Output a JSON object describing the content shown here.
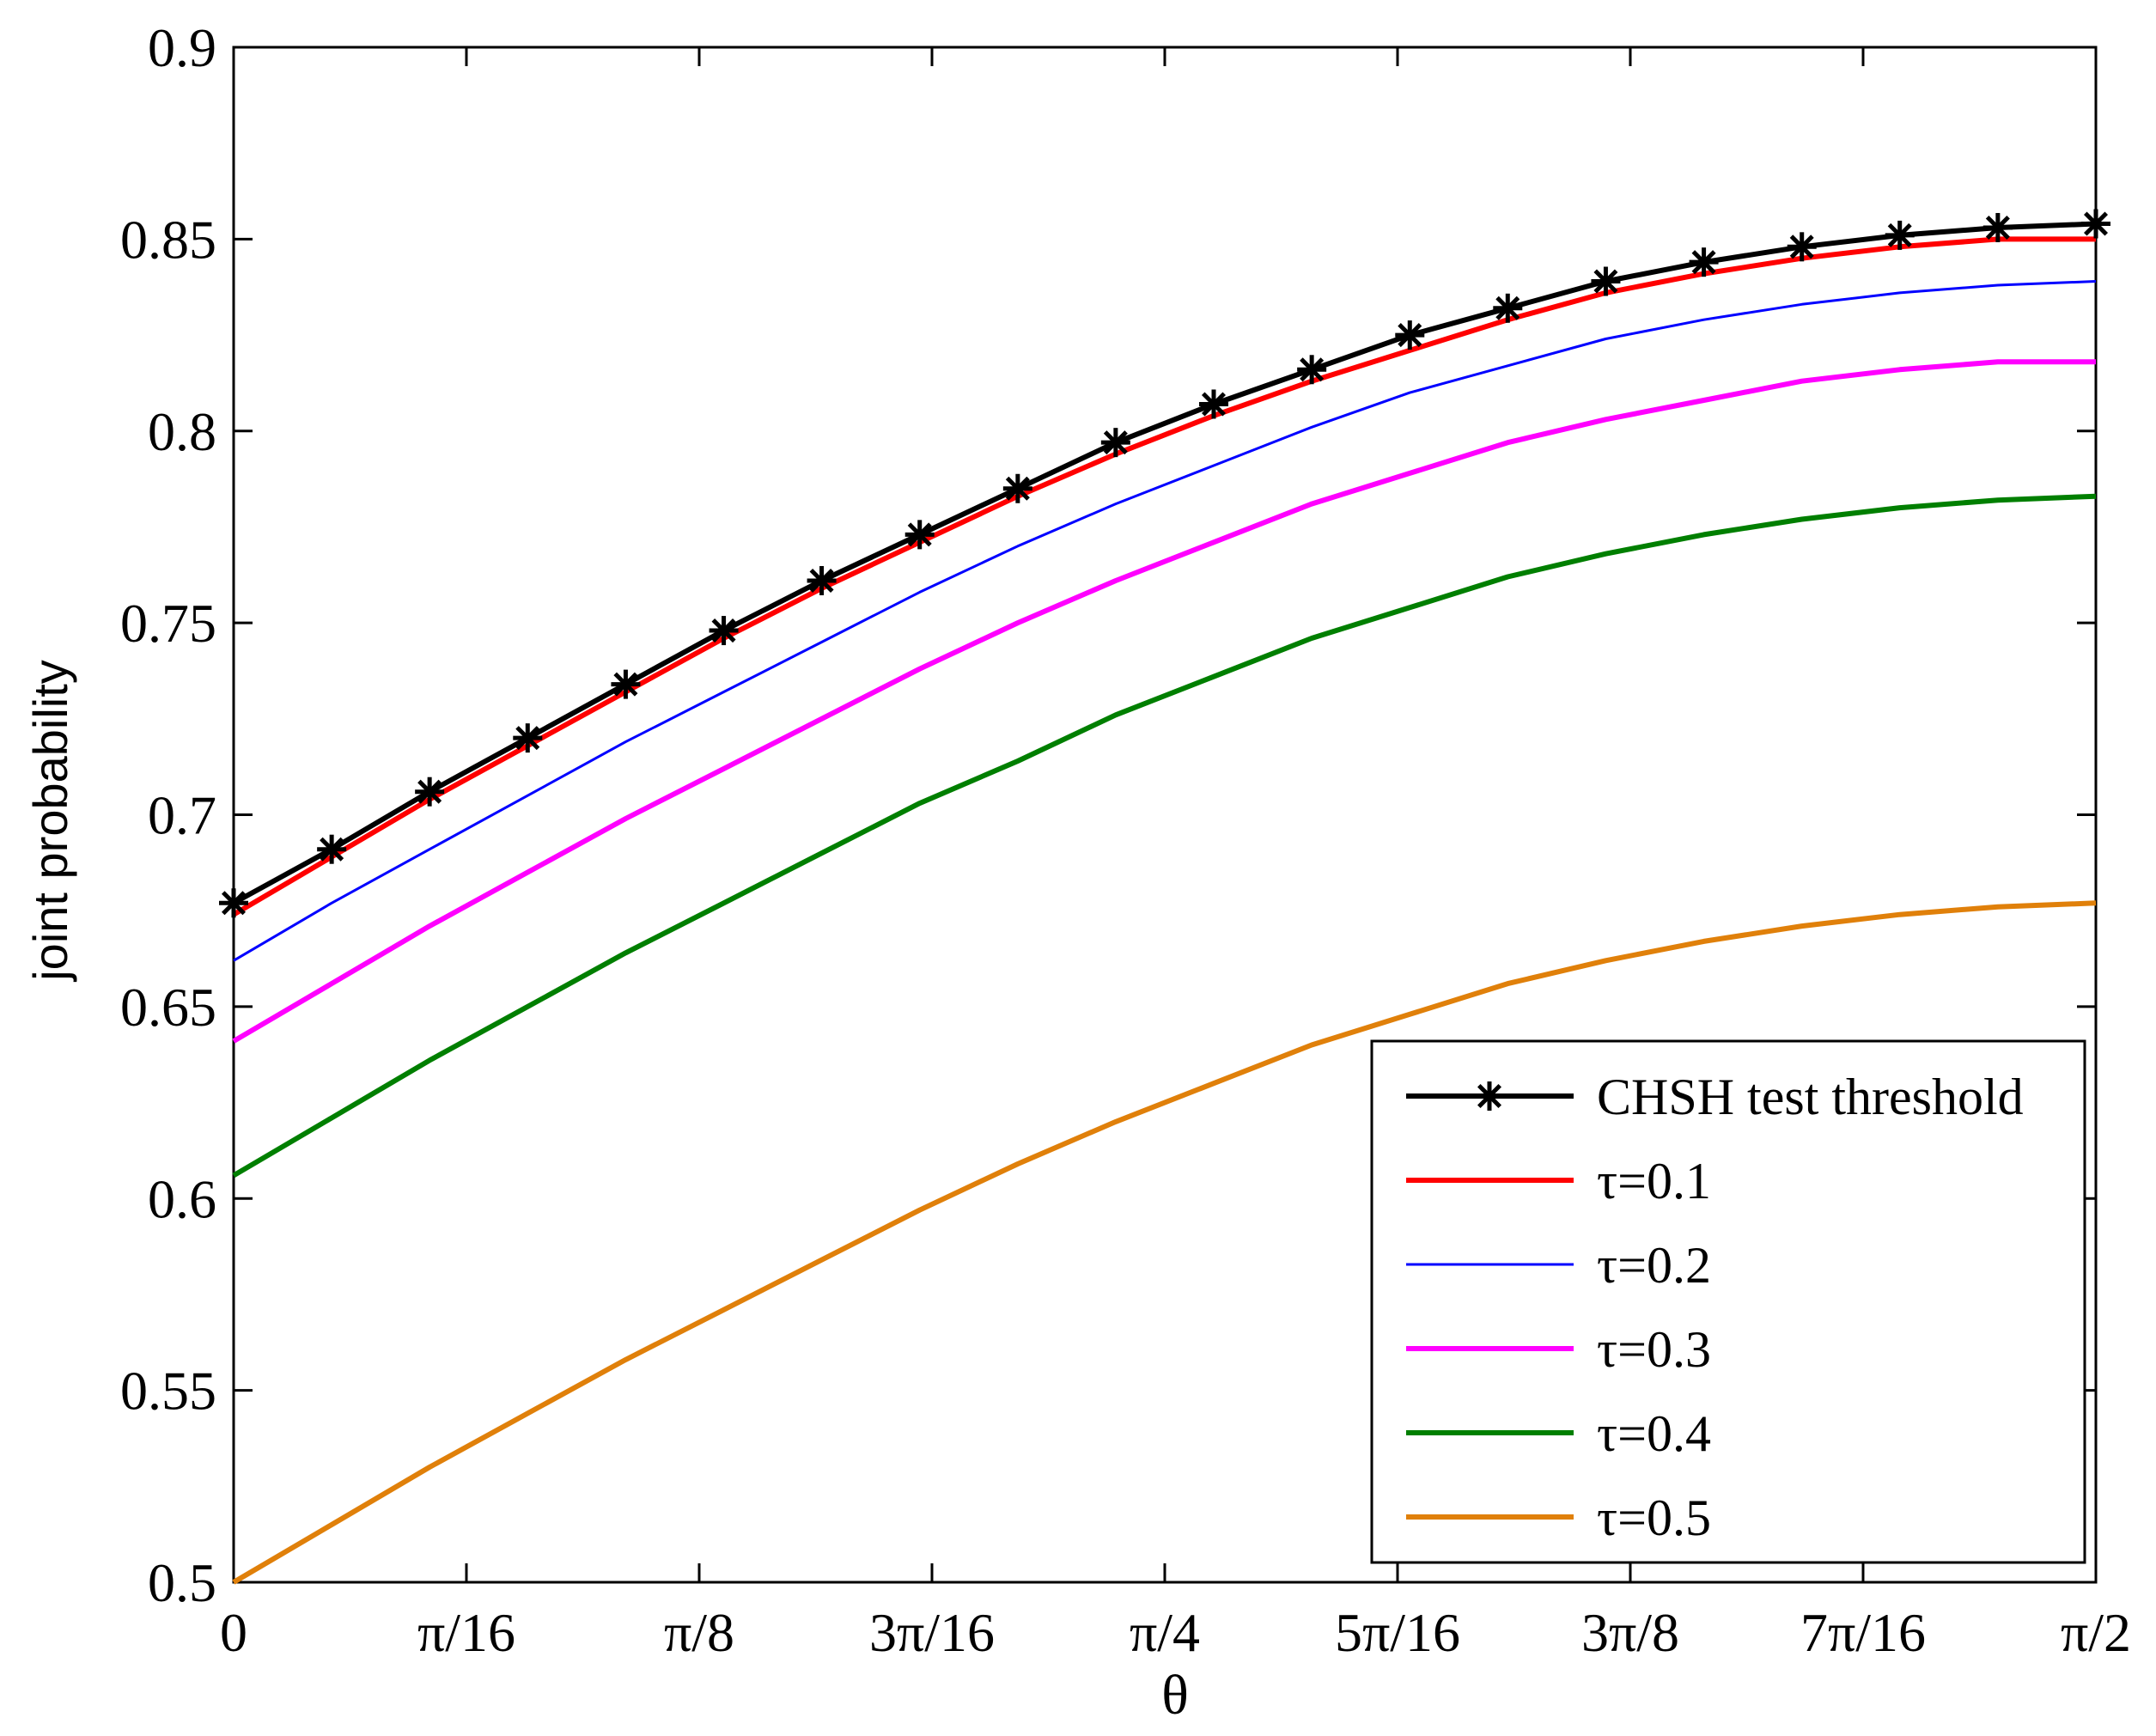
{
  "chart_data": {
    "type": "line",
    "title": "",
    "xlabel": "θ",
    "ylabel": "joint probability",
    "xlim": [
      0,
      1.5707963
    ],
    "ylim": [
      0.5,
      0.9
    ],
    "grid": false,
    "legend_position": "bottom-right",
    "x_ticks": [
      {
        "value": 0,
        "label": "0"
      },
      {
        "value": 0.19634954,
        "label": "π/16"
      },
      {
        "value": 0.39269908,
        "label": "π/8"
      },
      {
        "value": 0.58904862,
        "label": "3π/16"
      },
      {
        "value": 0.78539816,
        "label": "π/4"
      },
      {
        "value": 0.9817477,
        "label": "5π/16"
      },
      {
        "value": 1.17809725,
        "label": "3π/8"
      },
      {
        "value": 1.37444679,
        "label": "7π/16"
      },
      {
        "value": 1.57079633,
        "label": "π/2"
      }
    ],
    "y_ticks": [
      {
        "value": 0.5,
        "label": "0.5"
      },
      {
        "value": 0.55,
        "label": "0.55"
      },
      {
        "value": 0.6,
        "label": "0.6"
      },
      {
        "value": 0.65,
        "label": "0.65"
      },
      {
        "value": 0.7,
        "label": "0.7"
      },
      {
        "value": 0.75,
        "label": "0.75"
      },
      {
        "value": 0.8,
        "label": "0.8"
      },
      {
        "value": 0.85,
        "label": "0.85"
      },
      {
        "value": 0.9,
        "label": "0.9"
      }
    ],
    "x": [
      0,
      0.0827,
      0.1653,
      0.248,
      0.3307,
      0.4134,
      0.496,
      0.5787,
      0.6614,
      0.744,
      0.8267,
      0.9094,
      0.9921,
      1.0747,
      1.1574,
      1.2401,
      1.3228,
      1.4054,
      1.4881,
      1.5708
    ],
    "series": [
      {
        "name": "CHSH test threshold",
        "color": "#000000",
        "marker": "asterisk",
        "values": [
          0.677,
          0.691,
          0.706,
          0.72,
          0.734,
          0.748,
          0.761,
          0.773,
          0.785,
          0.797,
          0.807,
          0.816,
          0.825,
          0.832,
          0.839,
          0.844,
          0.848,
          0.851,
          0.853,
          0.854
        ]
      },
      {
        "name": "τ=0.1",
        "color": "#ff0000",
        "marker": "",
        "values": [
          0.674,
          0.689,
          0.704,
          0.718,
          0.732,
          0.746,
          0.759,
          0.771,
          0.783,
          0.794,
          0.804,
          0.813,
          0.821,
          0.829,
          0.836,
          0.841,
          0.845,
          0.848,
          0.85,
          0.85
        ]
      },
      {
        "name": "τ=0.2",
        "color": "#0000ff",
        "marker": "",
        "values": [
          0.662,
          0.677,
          0.691,
          0.705,
          0.719,
          0.732,
          0.745,
          0.758,
          0.77,
          0.781,
          0.791,
          0.801,
          0.81,
          0.817,
          0.824,
          0.829,
          0.833,
          0.836,
          0.838,
          0.839
        ]
      },
      {
        "name": "τ=0.3",
        "color": "#ff00ff",
        "marker": "",
        "values": [
          0.641,
          0.656,
          0.671,
          0.685,
          0.699,
          0.712,
          0.725,
          0.738,
          0.75,
          0.761,
          0.771,
          0.781,
          0.789,
          0.797,
          0.803,
          0.808,
          0.813,
          0.816,
          0.818,
          0.818
        ]
      },
      {
        "name": "τ=0.4",
        "color": "#007f00",
        "marker": "",
        "values": [
          0.606,
          0.621,
          0.636,
          0.65,
          0.664,
          0.677,
          0.69,
          0.703,
          0.714,
          0.726,
          0.736,
          0.746,
          0.754,
          0.762,
          0.768,
          0.773,
          0.777,
          0.78,
          0.782,
          0.783
        ]
      },
      {
        "name": "τ=0.5",
        "color": "#e0800a",
        "marker": "",
        "values": [
          0.5,
          0.515,
          0.53,
          0.544,
          0.558,
          0.571,
          0.584,
          0.597,
          0.609,
          0.62,
          0.63,
          0.64,
          0.648,
          0.656,
          0.662,
          0.667,
          0.671,
          0.674,
          0.676,
          0.677
        ]
      }
    ]
  }
}
